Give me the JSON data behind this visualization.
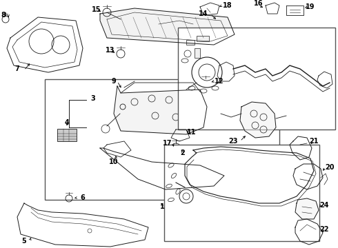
{
  "bg_color": "#ffffff",
  "line_color": "#1a1a1a",
  "box_color": "#555555",
  "figsize": [
    4.9,
    3.6
  ],
  "dpi": 100,
  "xlim": [
    0,
    490
  ],
  "ylim": [
    0,
    360
  ]
}
